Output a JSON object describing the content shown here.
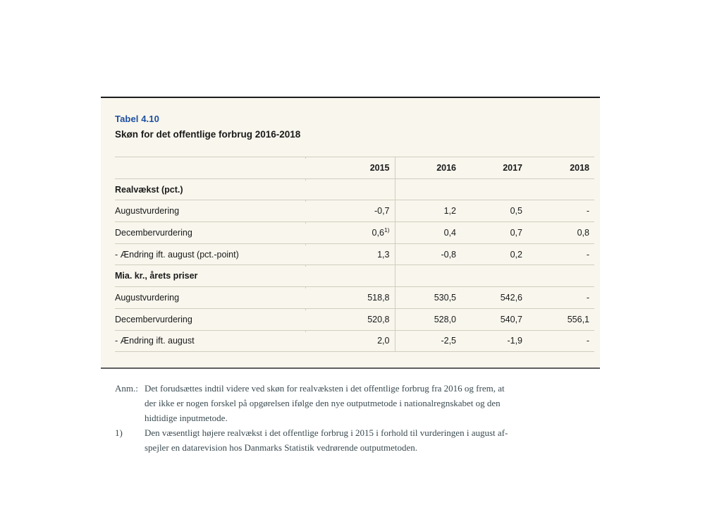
{
  "colors": {
    "panel_background": "#f8f6ed",
    "title_accent": "#1e4fa0",
    "rule_light": "#d0cdbf",
    "rule_top": "#1c1c1c",
    "rule_bottom": "#606060",
    "footnote_ink": "#3a4a50"
  },
  "panel": {
    "title": "Tabel 4.10",
    "subtitle": "Skøn for det offentlige forbrug 2016-2018"
  },
  "table": {
    "columns": [
      "",
      "2015",
      "2016",
      "2017",
      "2018"
    ],
    "rows": [
      {
        "label": "Realvækst (pct.)",
        "section": true,
        "values": [
          "",
          "",
          "",
          ""
        ]
      },
      {
        "label": "Augustvurdering",
        "section": false,
        "values": [
          "-0,7",
          "1,2",
          "0,5",
          "-"
        ]
      },
      {
        "label": "Decembervurdering",
        "section": false,
        "values": [
          "0,6",
          "0,4",
          "0,7",
          "0,8"
        ],
        "sup": {
          "0": "1)"
        }
      },
      {
        "label": "- Ændring ift. august (pct.-point)",
        "section": false,
        "values": [
          "1,3",
          "-0,8",
          "0,2",
          "-"
        ]
      },
      {
        "label": "Mia. kr., årets priser",
        "section": true,
        "values": [
          "",
          "",
          "",
          ""
        ]
      },
      {
        "label": "Augustvurdering",
        "section": false,
        "values": [
          "518,8",
          "530,5",
          "542,6",
          "-"
        ]
      },
      {
        "label": "Decembervurdering",
        "section": false,
        "values": [
          "520,8",
          "528,0",
          "540,7",
          "556,1"
        ]
      },
      {
        "label": "- Ændring ift. august",
        "section": false,
        "values": [
          "2,0",
          "-2,5",
          "-1,9",
          "-"
        ]
      }
    ]
  },
  "footnotes": [
    {
      "label": "Anm.:",
      "lines": [
        "Det forudsættes indtil videre ved skøn for realvæksten i det offentlige forbrug fra 2016 og frem, at",
        "der ikke er nogen forskel på opgørelsen ifølge den nye outputmetode i nationalregnskabet og den",
        "hidtidige inputmetode."
      ]
    },
    {
      "label": "1)",
      "lines": [
        "Den væsentligt højere realvækst i det offentlige forbrug i 2015 i forhold til vurderingen i august af-",
        "spejler en datarevision hos Danmarks Statistik vedrørende outputmetoden."
      ]
    }
  ]
}
